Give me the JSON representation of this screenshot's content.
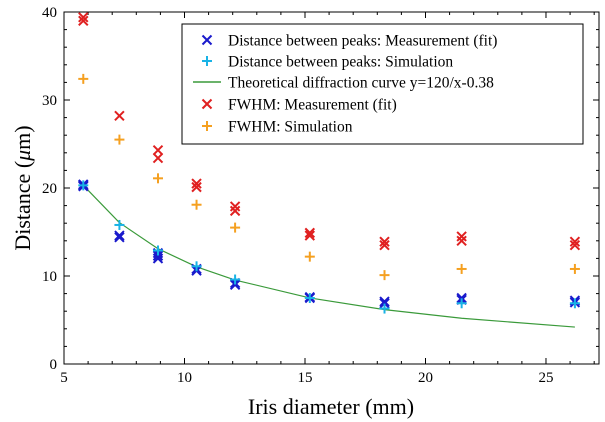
{
  "chart_data": {
    "type": "scatter",
    "xlabel": "Iris diameter (mm)",
    "ylabel_prefix": "Distance (",
    "ylabel_symbol": "μ",
    "ylabel_suffix": "m)",
    "xlim": [
      5,
      27.2
    ],
    "ylim": [
      0,
      40
    ],
    "xticks": [
      5,
      10,
      15,
      20,
      25
    ],
    "yticks": [
      0,
      10,
      20,
      30,
      40
    ],
    "grid": false,
    "legend_position": "top-right",
    "series": [
      {
        "name": "Distance between peaks: Measurement (fit)",
        "kind": "scatter",
        "marker": "x",
        "color": "#1a1acc",
        "points": [
          [
            5.8,
            20.3
          ],
          [
            5.8,
            20.2
          ],
          [
            5.8,
            20.4
          ],
          [
            7.3,
            14.6
          ],
          [
            7.3,
            14.4
          ],
          [
            8.9,
            12.3
          ],
          [
            8.9,
            12.0
          ],
          [
            8.9,
            12.6
          ],
          [
            10.5,
            10.6
          ],
          [
            10.5,
            10.8
          ],
          [
            12.1,
            9.2
          ],
          [
            12.1,
            9.0
          ],
          [
            15.2,
            7.6
          ],
          [
            15.2,
            7.5
          ],
          [
            18.3,
            7.1
          ],
          [
            18.3,
            6.9
          ],
          [
            21.5,
            7.5
          ],
          [
            21.5,
            7.3
          ],
          [
            26.2,
            7.2
          ],
          [
            26.2,
            7.0
          ]
        ]
      },
      {
        "name": "Distance between peaks: Simulation",
        "kind": "scatter",
        "marker": "+",
        "color": "#19b3e6",
        "points": [
          [
            5.8,
            20.3
          ],
          [
            7.3,
            15.8
          ],
          [
            8.9,
            12.9
          ],
          [
            10.5,
            11.1
          ],
          [
            12.1,
            9.6
          ],
          [
            15.2,
            7.5
          ],
          [
            18.3,
            6.3
          ],
          [
            21.5,
            6.9
          ],
          [
            26.2,
            6.9
          ]
        ]
      },
      {
        "name": "Theoretical diffraction curve y=120/x-0.38",
        "kind": "line",
        "color": "#3a9a3a",
        "x": [
          5.8,
          7.3,
          8.9,
          10.5,
          12.1,
          15.2,
          18.3,
          21.5,
          26.2
        ],
        "y": [
          20.31,
          16.06,
          13.1,
          11.05,
          9.54,
          7.51,
          6.18,
          5.2,
          4.2
        ]
      },
      {
        "name": "FWHM: Measurement (fit)",
        "kind": "scatter",
        "marker": "x",
        "color": "#e02020",
        "points": [
          [
            5.8,
            39.4
          ],
          [
            5.8,
            39.0
          ],
          [
            7.3,
            28.2
          ],
          [
            8.9,
            24.3
          ],
          [
            8.9,
            23.4
          ],
          [
            10.5,
            20.5
          ],
          [
            10.5,
            20.1
          ],
          [
            12.1,
            17.9
          ],
          [
            12.1,
            17.4
          ],
          [
            15.2,
            14.9
          ],
          [
            15.2,
            14.6
          ],
          [
            18.3,
            13.9
          ],
          [
            18.3,
            13.5
          ],
          [
            21.5,
            14.5
          ],
          [
            21.5,
            14.0
          ],
          [
            26.2,
            13.9
          ],
          [
            26.2,
            13.5
          ]
        ]
      },
      {
        "name": "FWHM: Simulation",
        "kind": "scatter",
        "marker": "+",
        "color": "#f5a020",
        "points": [
          [
            5.8,
            32.4
          ],
          [
            7.3,
            25.5
          ],
          [
            8.9,
            21.1
          ],
          [
            10.5,
            18.1
          ],
          [
            12.1,
            15.5
          ],
          [
            15.2,
            12.2
          ],
          [
            18.3,
            10.1
          ],
          [
            21.5,
            10.8
          ],
          [
            26.2,
            10.8
          ]
        ]
      }
    ]
  }
}
